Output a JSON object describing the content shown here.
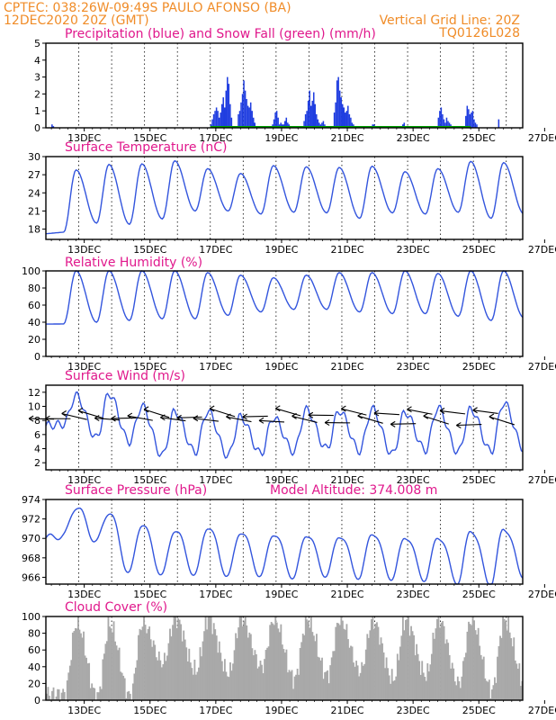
{
  "header": {
    "line1_left": "CPTEC:   038:26W-09:49S   PAULO AFONSO (BA)",
    "line2_left": "12DEC2020 20Z (GMT)",
    "line2_right": "Vertical Grid Line: 20Z",
    "line3_right": "TQ0126L028"
  },
  "colors": {
    "header": "#f08c28",
    "titles": "#e0188c",
    "precip": "#1f3de0",
    "snow": "#00a000",
    "line": "#3355dd",
    "cloud": "#a9a9a9"
  },
  "x_axis": {
    "labels": [
      "13DEC",
      "15DEC",
      "17DEC",
      "19DEC",
      "21DEC",
      "23DEC",
      "25DEC",
      "27DEC"
    ],
    "start": "12DEC2020 20Z",
    "hours_total": 348
  },
  "chart_data": [
    {
      "type": "bar",
      "title": "Precipitation (blue) and Snow Fall (green) (mm/h)",
      "ylim": [
        0,
        5
      ],
      "yticks": [
        "0",
        "1",
        "2",
        "3",
        "4",
        "5"
      ],
      "series": [
        {
          "name": "Precipitation",
          "hours": [
            4,
            5,
            120,
            121,
            122,
            123,
            124,
            125,
            126,
            127,
            128,
            129,
            130,
            131,
            132,
            133,
            134,
            135,
            140,
            141,
            142,
            143,
            144,
            145,
            146,
            147,
            148,
            149,
            150,
            151,
            152,
            165,
            166,
            167,
            168,
            169,
            170,
            171,
            172,
            173,
            174,
            175,
            176,
            177,
            188,
            189,
            190,
            191,
            192,
            193,
            194,
            195,
            196,
            197,
            198,
            199,
            200,
            201,
            202,
            203,
            210,
            211,
            212,
            213,
            214,
            215,
            216,
            217,
            218,
            219,
            220,
            221,
            222,
            223,
            224,
            238,
            239,
            240,
            260,
            261,
            262,
            263,
            264,
            265,
            286,
            287,
            288,
            289,
            290,
            291,
            292,
            293,
            294,
            295,
            296,
            306,
            307,
            308,
            309,
            310,
            311,
            312,
            313,
            314,
            330
          ],
          "values": [
            0.2,
            0.1,
            0.2,
            0.5,
            0.8,
            1.0,
            1.2,
            1.0,
            0.6,
            0.9,
            1.4,
            1.8,
            1.2,
            2.2,
            3.0,
            2.6,
            1.4,
            0.6,
            0.8,
            1.0,
            1.5,
            2.0,
            2.8,
            2.2,
            1.7,
            1.3,
            1.2,
            1.5,
            1.0,
            0.6,
            0.3,
            0.2,
            0.5,
            0.9,
            1.0,
            0.6,
            0.2,
            0.3,
            0.2,
            0.2,
            0.4,
            0.6,
            0.3,
            0.2,
            0.4,
            0.8,
            1.0,
            1.6,
            2.2,
            1.3,
            1.6,
            2.1,
            1.4,
            0.8,
            0.5,
            0.3,
            0.2,
            0.3,
            0.4,
            0.2,
            0.9,
            1.5,
            2.8,
            3.0,
            2.2,
            1.8,
            1.4,
            1.2,
            0.9,
            1.0,
            1.3,
            0.8,
            0.6,
            0.3,
            0.2,
            0.2,
            0.2,
            0.1,
            0.2,
            0.3,
            0.1,
            0.1,
            0.1,
            0.1,
            0.6,
            1.0,
            1.2,
            0.8,
            0.5,
            0.3,
            0.6,
            0.4,
            0.3,
            0.2,
            0.1,
            0.7,
            1.3,
            1.1,
            0.8,
            0.9,
            1.0,
            0.5,
            0.3,
            0.2,
            0.5
          ]
        }
      ]
    },
    {
      "type": "line",
      "title": "Surface Temperature (nC)",
      "ylim": [
        16.3,
        30
      ],
      "yticks": [
        "18",
        "21",
        "24",
        "27",
        "30"
      ],
      "daily_min": [
        17.5,
        19.0,
        18.8,
        19.7,
        21.0,
        21.0,
        20.5,
        20.8,
        20.7,
        19.8,
        20.7,
        20.5,
        20.8,
        19.8,
        20.5
      ],
      "daily_max": [
        27.8,
        28.7,
        28.8,
        29.3,
        28.0,
        27.2,
        28.5,
        28.3,
        28.2,
        28.4,
        27.5,
        28.0,
        29.2,
        29.0
      ]
    },
    {
      "type": "line",
      "title": "Relative Humidity (%)",
      "ylim": [
        0,
        100
      ],
      "yticks": [
        "0",
        "20",
        "40",
        "60",
        "80",
        "100"
      ],
      "daily_min": [
        38,
        40,
        42,
        44,
        44,
        48,
        52,
        55,
        55,
        52,
        50,
        50,
        47,
        42,
        45
      ],
      "daily_max": [
        100,
        100,
        100,
        100,
        98,
        95,
        92,
        95,
        98,
        98,
        100,
        97,
        100,
        100
      ]
    },
    {
      "type": "line",
      "title": "Surface Wind (m/s)",
      "ylim": [
        1,
        13
      ],
      "yticks": [
        "2",
        "4",
        "6",
        "8",
        "10",
        "12"
      ],
      "daily_min": [
        7.5,
        5.5,
        5.0,
        3.0,
        3.5,
        3.0,
        3.3,
        3.6,
        4.0,
        3.7,
        3.2,
        3.8,
        3.5,
        3.6,
        4.0
      ],
      "daily_max": [
        11.5,
        11.8,
        10.0,
        9.3,
        9.3,
        8.5,
        8.4,
        9.5,
        9.4,
        9.6,
        9.2,
        9.8,
        9.6,
        10.5
      ]
    },
    {
      "type": "line",
      "title": "Surface Pressure (hPa)",
      "annotation": "Model Altitude: 374.008 m",
      "ylim": [
        965.3,
        974
      ],
      "yticks": [
        "966",
        "968",
        "970",
        "972",
        "974"
      ],
      "daily_min": [
        970.3,
        969.7,
        966.5,
        966.3,
        966.3,
        966.2,
        966.2,
        966.0,
        966.2,
        966.0,
        965.9,
        965.8,
        965.5,
        965.3,
        966.2
      ],
      "daily_max": [
        973.3,
        972.8,
        971.6,
        971.0,
        971.3,
        970.8,
        970.6,
        970.5,
        970.4,
        970.7,
        970.3,
        970.3,
        971.0,
        971.2
      ]
    },
    {
      "type": "bar",
      "title": "Cloud Cover (%)",
      "ylim": [
        0,
        100
      ],
      "yticks": [
        "0",
        "20",
        "40",
        "60",
        "80",
        "100"
      ],
      "daily_min": [
        8,
        4,
        5,
        45,
        35,
        32,
        40,
        25,
        30,
        35,
        25,
        30,
        20,
        12,
        20
      ],
      "daily_max": [
        92,
        90,
        92,
        98,
        98,
        98,
        97,
        97,
        97,
        95,
        96,
        97,
        97,
        96,
        96
      ]
    }
  ]
}
